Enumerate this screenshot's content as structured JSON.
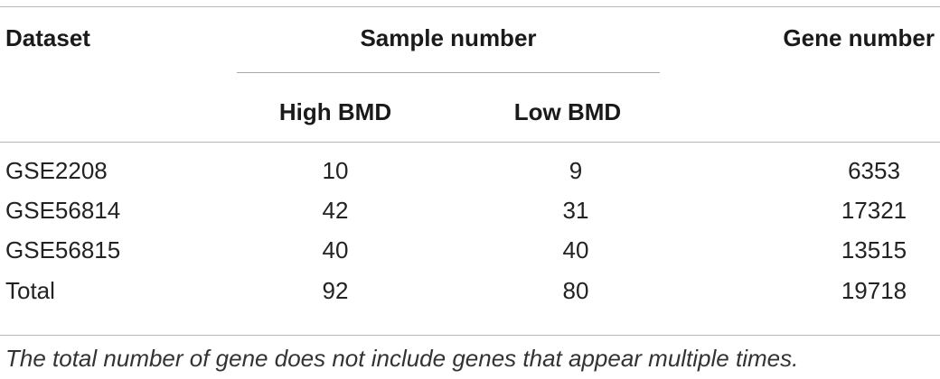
{
  "table": {
    "headers": {
      "dataset": "Dataset",
      "sample_number": "Sample number",
      "gene_number": "Gene number",
      "high_bmd": "High BMD",
      "low_bmd": "Low BMD"
    },
    "rows": [
      {
        "dataset": "GSE2208",
        "high_bmd": "10",
        "low_bmd": "9",
        "gene_number": "6353"
      },
      {
        "dataset": "GSE56814",
        "high_bmd": "42",
        "low_bmd": "31",
        "gene_number": "17321"
      },
      {
        "dataset": "GSE56815",
        "high_bmd": "40",
        "low_bmd": "40",
        "gene_number": "13515"
      },
      {
        "dataset": "Total",
        "high_bmd": "92",
        "low_bmd": "80",
        "gene_number": "19718"
      }
    ],
    "footnote": "The total number of gene does not include genes that appear multiple times."
  }
}
